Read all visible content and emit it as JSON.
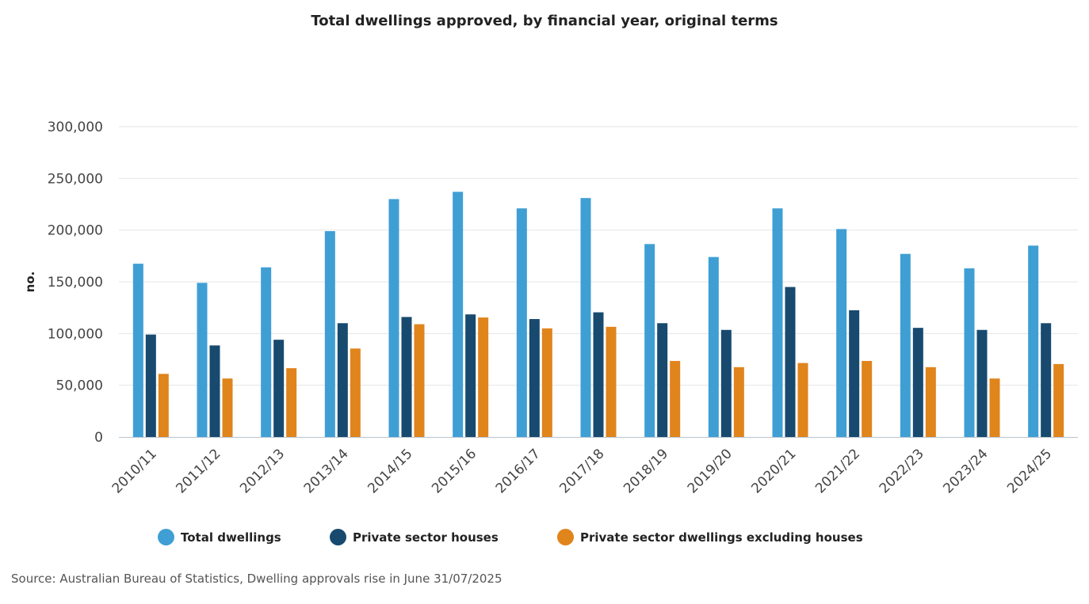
{
  "chart_data": {
    "type": "bar",
    "title": "Total dwellings approved, by financial year, original terms",
    "ylabel": "no.",
    "xlabel": "",
    "ylim": [
      0,
      300000
    ],
    "yticks": [
      0,
      50000,
      100000,
      150000,
      200000,
      250000,
      300000
    ],
    "ytick_labels": [
      "0",
      "50,000",
      "100,000",
      "150,000",
      "200,000",
      "250,000",
      "300,000"
    ],
    "grid": true,
    "legend_position": "bottom",
    "categories": [
      "2010/11",
      "2011/12",
      "2012/13",
      "2013/14",
      "2014/15",
      "2015/16",
      "2016/17",
      "2017/18",
      "2018/19",
      "2019/20",
      "2020/21",
      "2021/22",
      "2022/23",
      "2023/24",
      "2024/25"
    ],
    "series": [
      {
        "name": "Total dwellings",
        "color": "#3f9fd4",
        "values": [
          167500,
          149000,
          164000,
          199000,
          230000,
          237000,
          221000,
          231000,
          186500,
          174000,
          221000,
          201000,
          177000,
          163000,
          185000
        ]
      },
      {
        "name": "Private sector houses",
        "color": "#174a6e",
        "values": [
          99000,
          88500,
          94000,
          110000,
          116000,
          118500,
          114000,
          120500,
          110000,
          103500,
          145000,
          122500,
          105500,
          103500,
          110000
        ]
      },
      {
        "name": "Private sector dwellings excluding houses",
        "color": "#e0841c",
        "values": [
          61000,
          56500,
          66500,
          85500,
          109000,
          115500,
          105000,
          106500,
          73500,
          67500,
          71500,
          73500,
          67500,
          56500,
          70500
        ]
      }
    ]
  },
  "source": "Source: Australian Bureau of Statistics, Dwelling approvals rise in June 31/07/2025"
}
